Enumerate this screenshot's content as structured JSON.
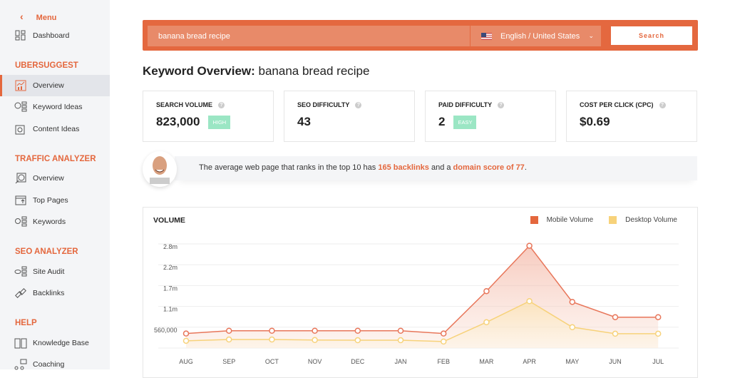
{
  "sidebar": {
    "menu_label": "Menu",
    "dashboard": "Dashboard",
    "sections": [
      {
        "title": "UBERSUGGEST",
        "items": [
          "Overview",
          "Keyword Ideas",
          "Content Ideas"
        ]
      },
      {
        "title": "TRAFFIC ANALYZER",
        "items": [
          "Overview",
          "Top Pages",
          "Keywords"
        ]
      },
      {
        "title": "SEO ANALYZER",
        "items": [
          "Site Audit",
          "Backlinks"
        ]
      },
      {
        "title": "HELP",
        "items": [
          "Knowledge Base",
          "Coaching"
        ]
      }
    ]
  },
  "search": {
    "value": "banana bread recipe",
    "language": "English / United States",
    "button": "Search"
  },
  "page_title": {
    "prefix": "Keyword Overview:",
    "keyword": "banana bread recipe"
  },
  "metrics": [
    {
      "label": "SEARCH VOLUME",
      "value": "823,000",
      "badge": "HIGH"
    },
    {
      "label": "SEO DIFFICULTY",
      "value": "43"
    },
    {
      "label": "PAID DIFFICULTY",
      "value": "2",
      "badge": "EASY"
    },
    {
      "label": "COST PER CLICK (CPC)",
      "value": "$0.69"
    }
  ],
  "tip": {
    "pre": "The average web page that ranks in the top 10 has ",
    "backlinks": "165 backlinks",
    "mid": " and a ",
    "score": "domain score of 77",
    "post": "."
  },
  "colors": {
    "accent": "#e4673d",
    "mobile": "#e8765a",
    "desktop": "#f7d27a",
    "badge": "#9be6c4"
  },
  "chart_data": {
    "type": "area",
    "title": "VOLUME",
    "categories": [
      "AUG",
      "SEP",
      "OCT",
      "NOV",
      "DEC",
      "JAN",
      "FEB",
      "MAR",
      "APR",
      "MAY",
      "JUN",
      "JUL"
    ],
    "y_ticks": [
      "560,000",
      "1.1m",
      "1.7m",
      "2.2m",
      "2.8m"
    ],
    "ylim": [
      0,
      2800000
    ],
    "grid": true,
    "legend": "top-right",
    "series": [
      {
        "name": "Mobile Volume",
        "values": [
          390000,
          465000,
          465000,
          465000,
          465000,
          465000,
          390000,
          1530000,
          2750000,
          1240000,
          830000,
          830000
        ]
      },
      {
        "name": "Desktop Volume",
        "values": [
          195000,
          230000,
          230000,
          215000,
          210000,
          210000,
          175000,
          695000,
          1260000,
          560000,
          385000,
          385000
        ]
      }
    ]
  }
}
